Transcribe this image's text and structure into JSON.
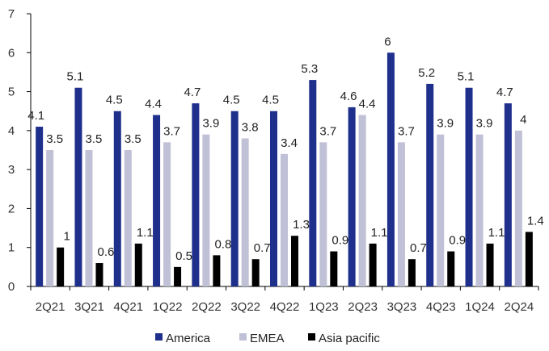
{
  "chart_data": {
    "type": "bar",
    "categories": [
      "2Q21",
      "3Q21",
      "4Q21",
      "1Q22",
      "2Q22",
      "3Q22",
      "4Q22",
      "1Q23",
      "2Q23",
      "3Q23",
      "4Q23",
      "1Q24",
      "2Q24"
    ],
    "series": [
      {
        "name": "America",
        "color": "#1f2f8c",
        "values": [
          4.1,
          5.1,
          4.5,
          4.4,
          4.7,
          4.5,
          4.5,
          5.3,
          4.6,
          6,
          5.2,
          5.1,
          4.7
        ],
        "labels": [
          "4.1",
          "5.1",
          "4.5",
          "4.4",
          "4.7",
          "4.5",
          "4.5",
          "5.3",
          "4.6",
          "6",
          "5.2",
          "5.1",
          "4.7"
        ]
      },
      {
        "name": "EMEA",
        "color": "#c0c0d6",
        "values": [
          3.5,
          3.5,
          3.5,
          3.7,
          3.9,
          3.8,
          3.4,
          3.7,
          4.4,
          3.7,
          3.9,
          3.9,
          4
        ],
        "labels": [
          "3.5",
          "3.5",
          "3.5",
          "3.7",
          "3.9",
          "3.8",
          "3.4",
          "3.7",
          "4.4",
          "3.7",
          "3.9",
          "3.9",
          "4"
        ]
      },
      {
        "name": "Asia pacific",
        "color": "#000000",
        "values": [
          1,
          0.6,
          1.1,
          0.5,
          0.8,
          0.7,
          1.3,
          0.9,
          1.1,
          0.7,
          0.9,
          1.1,
          1.4
        ],
        "labels": [
          "1",
          "0.6",
          "1.1",
          "0.5",
          "0.8",
          "0.7",
          "1.3",
          "0.9",
          "1.1",
          "0.7",
          "0.9",
          "1.1",
          "1.4"
        ]
      }
    ],
    "ylim": [
      0,
      7
    ],
    "yticks": [
      "0",
      "1",
      "2",
      "3",
      "4",
      "5",
      "6",
      "7"
    ],
    "legend_position": "bottom-center",
    "grid": false
  }
}
